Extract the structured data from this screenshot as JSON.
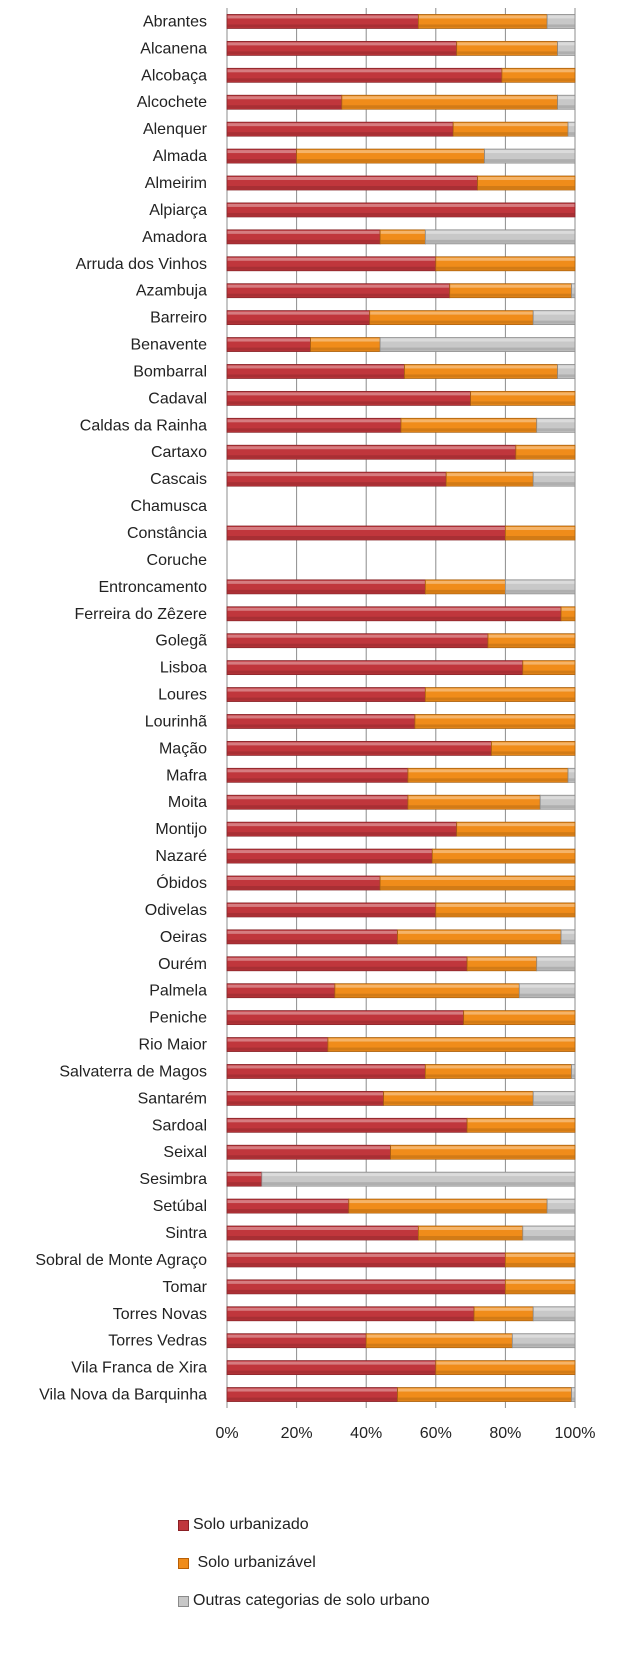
{
  "chart_data": {
    "type": "bar",
    "orientation": "horizontal",
    "stacked": "percent",
    "categories": [
      "Abrantes",
      "Alcanena",
      "Alcobaça",
      "Alcochete",
      "Alenquer",
      "Almada",
      "Almeirim",
      "Alpiarça",
      "Amadora",
      "Arruda dos Vinhos",
      "Azambuja",
      "Barreiro",
      "Benavente",
      "Bombarral",
      "Cadaval",
      "Caldas da Rainha",
      "Cartaxo",
      "Cascais",
      "Chamusca",
      "Constância",
      "Coruche",
      "Entroncamento",
      "Ferreira do Zêzere",
      "Golegã",
      "Lisboa",
      "Loures",
      "Lourinhã",
      "Mação",
      "Mafra",
      "Moita",
      "Montijo",
      "Nazaré",
      "Óbidos",
      "Odivelas",
      "Oeiras",
      "Ourém",
      "Palmela",
      "Peniche",
      "Rio Maior",
      "Salvaterra de Magos",
      "Santarém",
      "Sardoal",
      "Seixal",
      "Sesimbra",
      "Setúbal",
      "Sintra",
      "Sobral de Monte Agraço",
      "Tomar",
      "Torres Novas",
      "Torres Vedras",
      "Vila Franca de Xira",
      "Vila Nova da Barquinha"
    ],
    "series": [
      {
        "name": "Solo urbanizado",
        "color": "#c0363c",
        "values": [
          55,
          66,
          79,
          33,
          65,
          20,
          72,
          100,
          44,
          60,
          64,
          41,
          24,
          51,
          70,
          50,
          83,
          63,
          0,
          80,
          0,
          57,
          96,
          75,
          85,
          57,
          54,
          76,
          52,
          52,
          66,
          59,
          44,
          60,
          49,
          69,
          31,
          68,
          29,
          57,
          45,
          69,
          47,
          10,
          35,
          55,
          80,
          80,
          71,
          40,
          60,
          49
        ]
      },
      {
        "name": "Solo urbanizável",
        "color": "#f08c1a",
        "values": [
          37,
          29,
          21,
          62,
          33,
          54,
          28,
          0,
          13,
          40,
          35,
          47,
          20,
          44,
          30,
          39,
          17,
          25,
          0,
          20,
          0,
          23,
          4,
          25,
          15,
          43,
          46,
          24,
          46,
          38,
          34,
          41,
          56,
          40,
          47,
          20,
          53,
          32,
          71,
          42,
          43,
          31,
          53,
          0,
          57,
          30,
          20,
          20,
          17,
          42,
          40,
          50
        ]
      },
      {
        "name": "Outras categorias de solo urbano",
        "color": "#c8c8c8",
        "values": [
          8,
          5,
          0,
          5,
          2,
          26,
          0,
          0,
          43,
          0,
          1,
          12,
          56,
          5,
          0,
          11,
          0,
          12,
          0,
          0,
          0,
          20,
          0,
          0,
          0,
          0,
          0,
          0,
          2,
          10,
          0,
          0,
          0,
          0,
          4,
          11,
          16,
          0,
          0,
          1,
          12,
          0,
          0,
          90,
          8,
          15,
          0,
          0,
          12,
          18,
          0,
          1
        ]
      }
    ],
    "x_ticks": [
      "0%",
      "20%",
      "40%",
      "60%",
      "80%",
      "100%"
    ],
    "xlim": [
      0,
      100
    ],
    "grid": "vertical",
    "legend_position": "bottom"
  },
  "legend": {
    "items": [
      {
        "label": "Solo urbanizado",
        "color": "#c0363c"
      },
      {
        "label": " Solo urbanizável",
        "color": "#f08c1a"
      },
      {
        "label": "Outras categorias de solo urbano",
        "color": "#c8c8c8"
      }
    ]
  }
}
